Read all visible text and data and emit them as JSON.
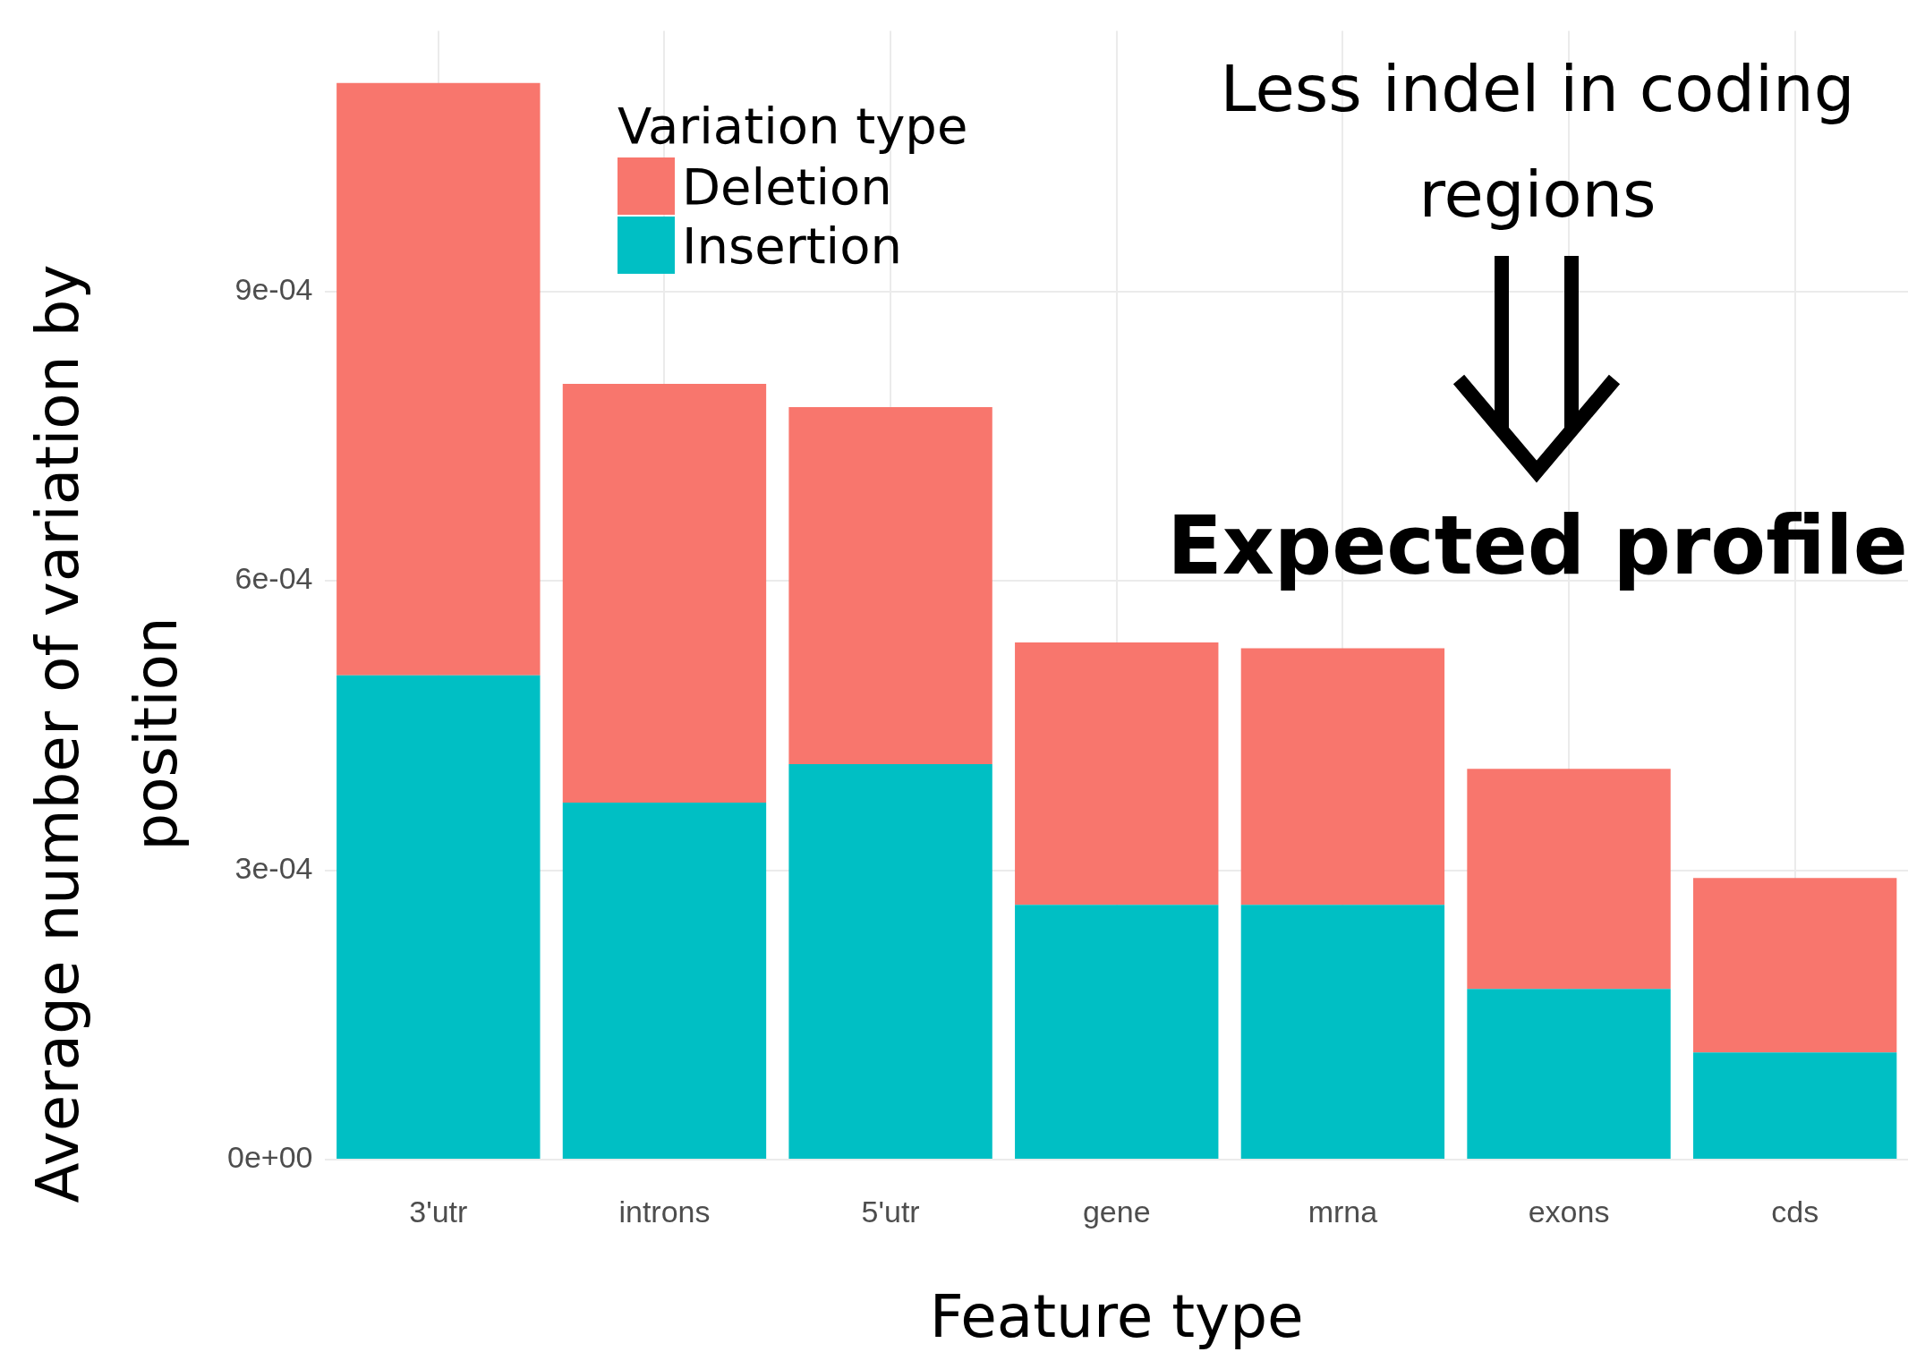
{
  "chart_data": {
    "type": "bar",
    "stacked": true,
    "xlabel": "Feature type",
    "ylabel": "Average number of variation by position",
    "legend_title": "Variation type",
    "categories": [
      "3'utr",
      "introns",
      "5'utr",
      "gene",
      "mrna",
      "exons",
      "cds"
    ],
    "series": [
      {
        "name": "Insertion",
        "color": "#00bfc4",
        "values": [
          0.000502,
          0.00037,
          0.00041,
          0.000264,
          0.000264,
          0.000177,
          0.000111
        ]
      },
      {
        "name": "Deletion",
        "color": "#f8766d",
        "values": [
          0.000614,
          0.000434,
          0.00037,
          0.000272,
          0.000266,
          0.000228,
          0.000181
        ]
      }
    ],
    "ylim": [
      0,
      0.00117
    ],
    "yticks": [
      {
        "value": 0,
        "label": "0e+00"
      },
      {
        "value": 0.0003,
        "label": "3e-04"
      },
      {
        "value": 0.0006,
        "label": "6e-04"
      },
      {
        "value": 0.0009,
        "label": "9e-04"
      }
    ],
    "grid": true,
    "legend": "top",
    "annotations": [
      "Less indel in coding regions",
      "Expected profile"
    ]
  }
}
